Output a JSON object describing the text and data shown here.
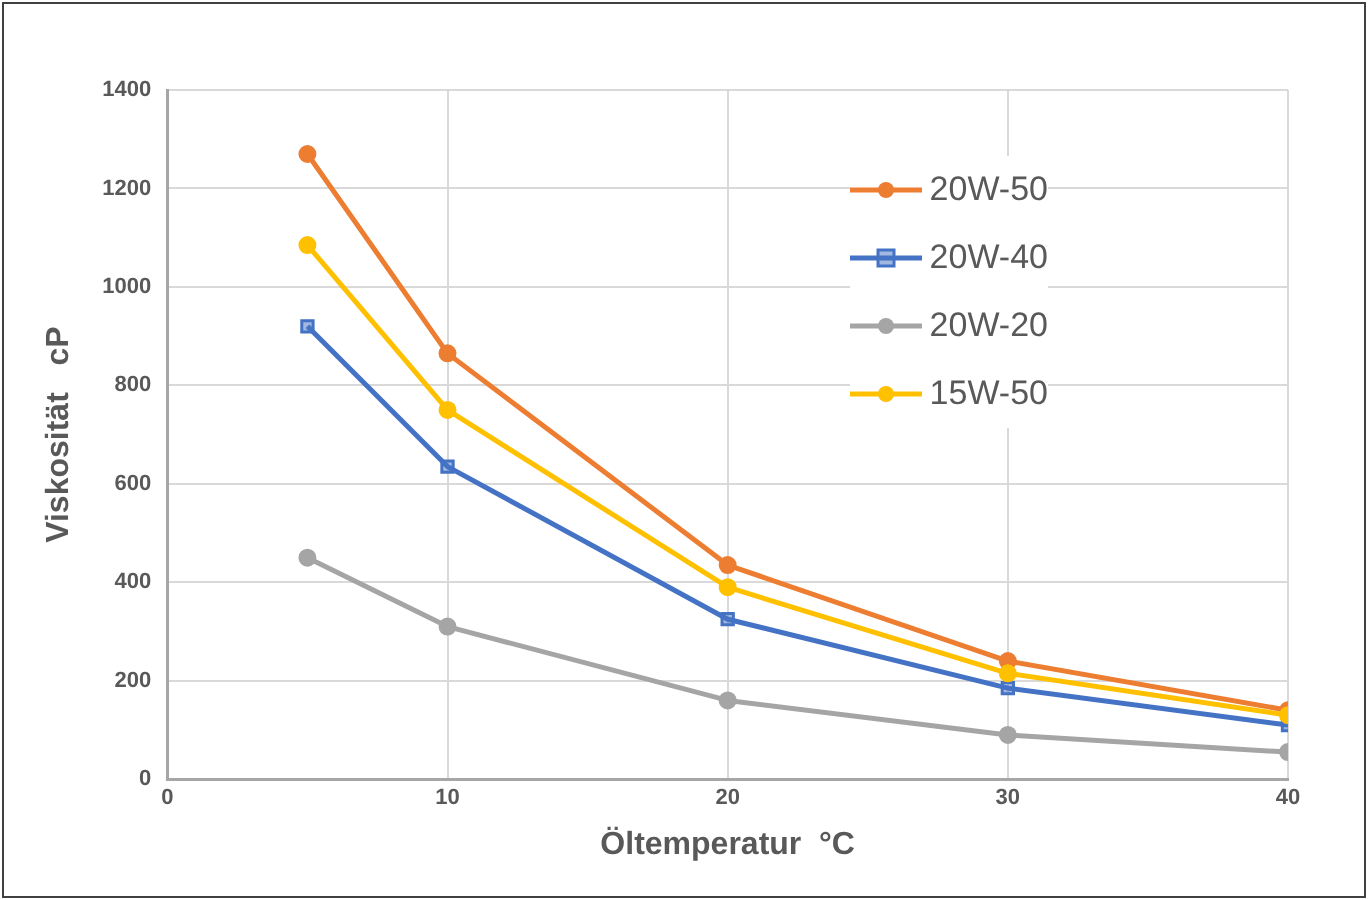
{
  "chart_data": {
    "type": "line",
    "xlabel": "Öltemperatur  °C",
    "ylabel": "Viskosität   cP",
    "x": [
      5,
      10,
      20,
      30,
      40
    ],
    "series": [
      {
        "name": "20W-50",
        "color": "#ed7d31",
        "marker": "circle",
        "values": [
          1270,
          865,
          435,
          240,
          140
        ]
      },
      {
        "name": "20W-40",
        "color": "#4472c4",
        "marker": "square",
        "values": [
          920,
          635,
          325,
          185,
          110
        ]
      },
      {
        "name": "20W-20",
        "color": "#a5a5a5",
        "marker": "circle",
        "values": [
          450,
          310,
          160,
          90,
          55
        ]
      },
      {
        "name": "15W-50",
        "color": "#ffc000",
        "marker": "circle",
        "values": [
          1085,
          750,
          390,
          215,
          130
        ]
      }
    ],
    "xlim": [
      0,
      40
    ],
    "xticks": [
      0,
      10,
      20,
      30,
      40
    ],
    "ylim": [
      0,
      1400
    ],
    "yticks": [
      0,
      200,
      400,
      600,
      800,
      1000,
      1200,
      1400
    ],
    "grid": true,
    "legend": "top right",
    "line_style": "solid"
  }
}
